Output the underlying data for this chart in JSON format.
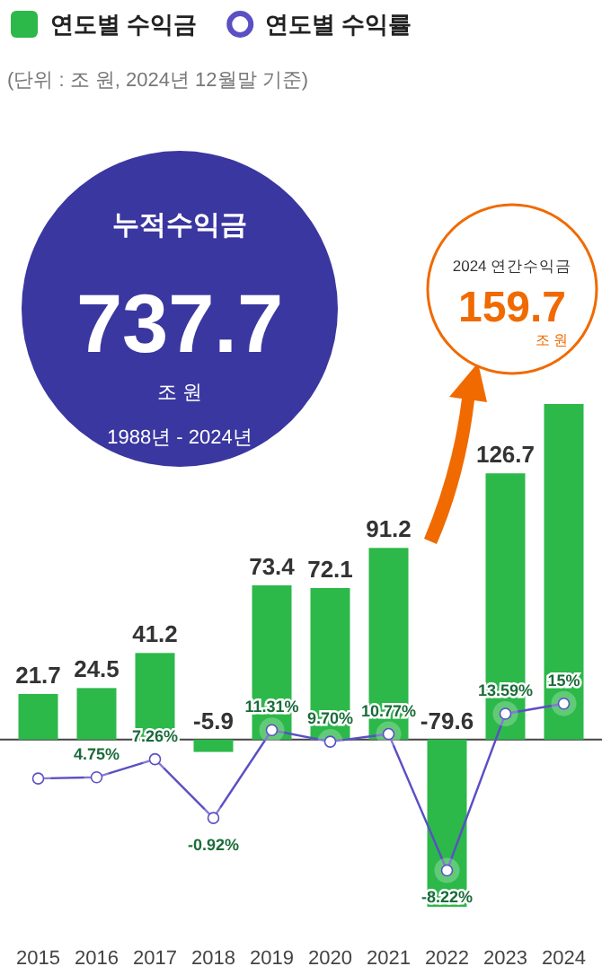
{
  "chart_data": {
    "type": "bar",
    "subtitle": "(단위 : 조 원, 2024년 12월말 기준)",
    "categories": [
      "2015",
      "2016",
      "2017",
      "2018",
      "2019",
      "2020",
      "2021",
      "2022",
      "2023",
      "2024"
    ],
    "series": [
      {
        "name": "연도별 수익금",
        "color": "#2db84a",
        "values": [
          21.7,
          24.5,
          41.2,
          -5.9,
          73.4,
          72.1,
          91.2,
          -79.6,
          126.7,
          159.7
        ],
        "value_labels": [
          "21.7",
          "24.5",
          "41.2",
          "-5.9",
          "73.4",
          "72.1",
          "91.2",
          "-79.6",
          "126.7",
          null
        ]
      },
      {
        "name": "연도별 수익률",
        "type": "line",
        "axis": "y2",
        "color": "#5b4fc4",
        "values": [
          4.57,
          4.75,
          7.26,
          -0.92,
          11.31,
          9.7,
          10.77,
          -8.22,
          13.59,
          15
        ],
        "value_labels": [
          null,
          "4.75%",
          "7.26%",
          "-0.92%",
          "11.31%",
          "9.70%",
          "10.77%",
          "-8.22%",
          "13.59%",
          "15%"
        ]
      }
    ],
    "tick_labels": "x",
    "legend": "top left",
    "marker": "circle",
    "annotations": [
      "누적수익금",
      "737.7",
      "조 원",
      "1988년 - 2024년",
      "2024 연간수익금",
      {
        "text": "159.7",
        "x": "2024",
        "y": 159.7
      },
      "조 원"
    ]
  }
}
